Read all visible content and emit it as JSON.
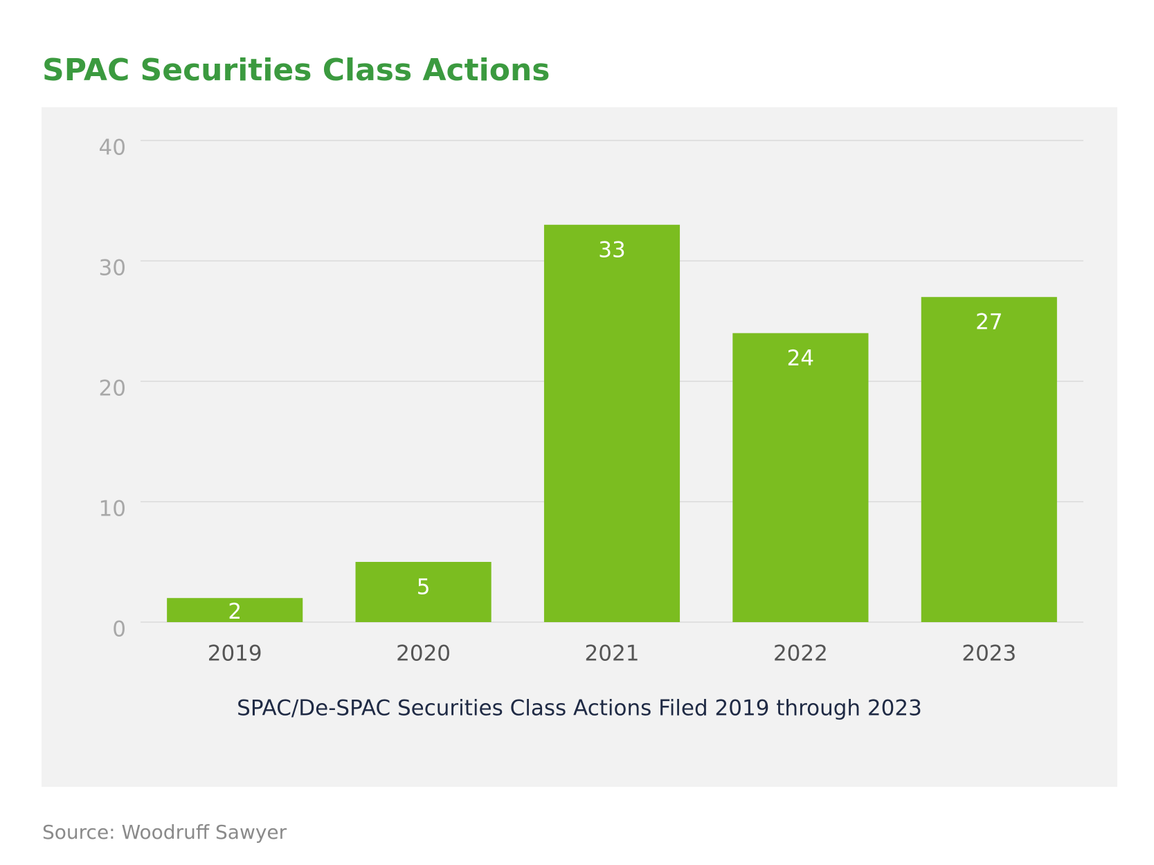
{
  "chart_data": {
    "type": "bar",
    "title": "SPAC Securities Class Actions",
    "xlabel": "SPAC/De-SPAC Securities Class Actions Filed 2019 through 2023",
    "source": "Source: Woodruff Sawyer",
    "categories": [
      "2019",
      "2020",
      "2021",
      "2022",
      "2023"
    ],
    "values": [
      2,
      5,
      33,
      24,
      27
    ],
    "color": "#7bbd20",
    "ylim": [
      0,
      40
    ],
    "yticks": [
      0,
      10,
      20,
      30,
      40
    ],
    "grid": true
  }
}
